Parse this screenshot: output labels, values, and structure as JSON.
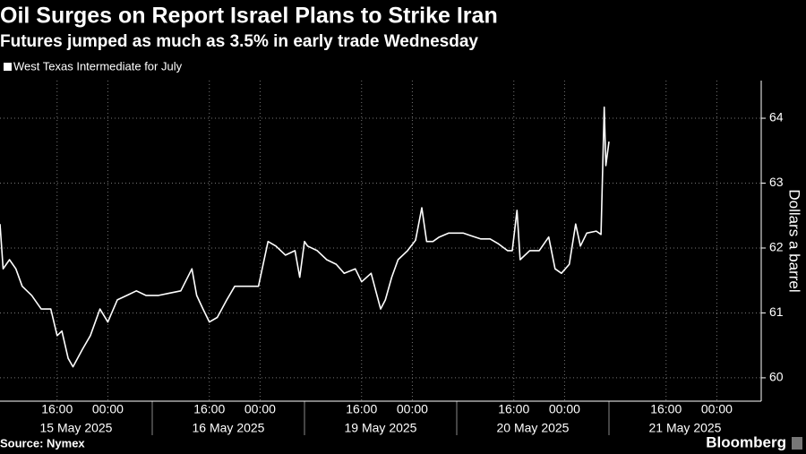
{
  "chart_data": {
    "type": "line",
    "title": "Oil Surges on Report Israel Plans to Strike Iran",
    "subtitle": "Futures jumped as much as 3.5% in early trade Wednesday",
    "y_label": "Dollars a barrel",
    "source": "Source: Nymex",
    "brand": "Bloomberg",
    "x": [
      "2025-05-15 07:00",
      "2025-05-15 07:30",
      "2025-05-15 08:30",
      "2025-05-15 09:30",
      "2025-05-15 10:30",
      "2025-05-15 12:00",
      "2025-05-15 13:30",
      "2025-05-15 15:00",
      "2025-05-15 16:00",
      "2025-05-15 16:45",
      "2025-05-15 17:45",
      "2025-05-15 18:30",
      "2025-05-15 20:00",
      "2025-05-15 21:15",
      "2025-05-15 22:45",
      "2025-05-16 00:00",
      "2025-05-16 01:30",
      "2025-05-16 03:00",
      "2025-05-16 04:30",
      "2025-05-16 06:00",
      "2025-05-16 08:00",
      "2025-05-16 09:30",
      "2025-05-16 11:30",
      "2025-05-16 13:15",
      "2025-05-16 14:00",
      "2025-05-16 15:00",
      "2025-05-16 16:00",
      "2025-05-16 17:15",
      "2025-05-16 18:45",
      "2025-05-16 20:00",
      "2025-05-16 21:30",
      "2025-05-16 23:45",
      "2025-05-17 01:15",
      "2025-05-17 02:30",
      "2025-05-17 04:00",
      "2025-05-17 05:30",
      "2025-05-17 06:15",
      "2025-05-19 07:00",
      "2025-05-19 07:30",
      "2025-05-19 09:00",
      "2025-05-19 10:30",
      "2025-05-19 12:00",
      "2025-05-19 13:15",
      "2025-05-19 15:00",
      "2025-05-19 16:00",
      "2025-05-19 17:30",
      "2025-05-19 19:00",
      "2025-05-19 19:45",
      "2025-05-19 20:45",
      "2025-05-19 21:45",
      "2025-05-19 23:15",
      "2025-05-20 00:30",
      "2025-05-20 01:30",
      "2025-05-20 02:15",
      "2025-05-20 03:15",
      "2025-05-20 04:15",
      "2025-05-20 05:45",
      "2025-05-20 08:00",
      "2025-05-20 09:15",
      "2025-05-20 10:45",
      "2025-05-20 12:15",
      "2025-05-20 13:30",
      "2025-05-20 15:00",
      "2025-05-20 15:45",
      "2025-05-20 16:30",
      "2025-05-20 17:00",
      "2025-05-20 18:30",
      "2025-05-20 20:00",
      "2025-05-20 21:30",
      "2025-05-20 22:30",
      "2025-05-20 23:30",
      "2025-05-21 00:45",
      "2025-05-21 01:45",
      "2025-05-21 02:30",
      "2025-05-21 03:30",
      "2025-05-21 05:00",
      "2025-05-21 05:45",
      "2025-05-21 06:15",
      "2025-05-21 06:30",
      "2025-05-21 07:00"
    ],
    "series": [
      {
        "name": "West Texas Intermediate for July",
        "color": "#ffffff",
        "values": [
          62.37,
          61.68,
          61.82,
          61.68,
          61.41,
          61.27,
          61.06,
          61.06,
          60.65,
          60.72,
          60.3,
          60.17,
          60.44,
          60.65,
          61.06,
          60.86,
          61.2,
          61.27,
          61.34,
          61.27,
          61.27,
          61.3,
          61.34,
          61.68,
          61.27,
          61.06,
          60.86,
          60.93,
          61.2,
          61.41,
          61.41,
          61.41,
          62.1,
          62.03,
          61.89,
          61.96,
          61.55,
          62.1,
          62.03,
          61.96,
          61.82,
          61.75,
          61.61,
          61.68,
          61.48,
          61.61,
          61.06,
          61.2,
          61.55,
          61.82,
          61.96,
          62.12,
          62.62,
          62.1,
          62.1,
          62.17,
          62.23,
          62.23,
          62.19,
          62.14,
          62.14,
          62.07,
          61.96,
          61.96,
          62.58,
          61.82,
          61.96,
          61.96,
          62.17,
          61.68,
          61.61,
          61.75,
          62.37,
          62.03,
          62.23,
          62.26,
          62.21,
          64.17,
          63.27,
          63.64
        ]
      }
    ],
    "xlim": [
      "2025-05-15 07:00",
      "2025-05-22 07:00"
    ],
    "xticks": [
      {
        "value": "2025-05-15 16:00",
        "label": "16:00"
      },
      {
        "value": "2025-05-16 00:00",
        "label": "00:00"
      },
      {
        "value": "2025-05-16 16:00",
        "label": "16:00"
      },
      {
        "value": "2025-05-17 00:00",
        "label": "00:00"
      },
      {
        "value": "2025-05-19 16:00",
        "label": "16:00"
      },
      {
        "value": "2025-05-20 00:00",
        "label": "00:00"
      },
      {
        "value": "2025-05-20 16:00",
        "label": "16:00"
      },
      {
        "value": "2025-05-21 00:00",
        "label": "00:00"
      },
      {
        "value": "2025-05-21 16:00",
        "label": "16:00"
      },
      {
        "value": "2025-05-22 00:00",
        "label": "00:00"
      }
    ],
    "x_groups": [
      {
        "value": "2025-05-15",
        "label": "15 May 2025"
      },
      {
        "value": "2025-05-16",
        "label": "16 May 2025"
      },
      {
        "value": "2025-05-19",
        "label": "19 May 2025"
      },
      {
        "value": "2025-05-20",
        "label": "20 May 2025"
      },
      {
        "value": "2025-05-21",
        "label": "21 May 2025"
      }
    ],
    "ylim": [
      59.64,
      64.58
    ],
    "yticks": [
      60,
      61,
      62,
      63,
      64
    ],
    "grid": true
  }
}
